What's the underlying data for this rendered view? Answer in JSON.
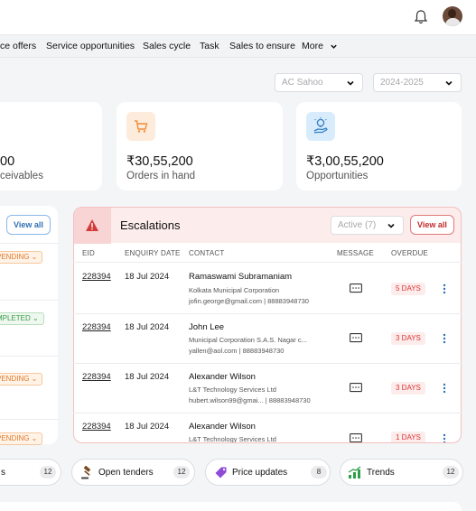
{
  "nav": {
    "items": [
      "ce offers",
      "Service opportunities",
      "Sales cycle",
      "Task",
      "Sales to ensure",
      "More"
    ]
  },
  "filters": {
    "owner": "AC Sahoo",
    "year": "2024-2025"
  },
  "kpis": [
    {
      "value": "00",
      "label": "ceivables"
    },
    {
      "value": "₹30,55,200",
      "label": "Orders in hand"
    },
    {
      "value": "₹3,00,55,200",
      "label": "Opportunities"
    }
  ],
  "left_panel": {
    "view_all": "View all",
    "statuses": [
      "PENDING",
      "MPLETED",
      "PENDING",
      "PENDING"
    ]
  },
  "escalations": {
    "title": "Escalations",
    "filter": "Active (7)",
    "view_all": "View all",
    "columns": [
      "EID",
      "ENQUIRY DATE",
      "CONTACT",
      "MESSAGE",
      "OVERDUE"
    ],
    "rows": [
      {
        "eid": "228394",
        "date": "18 Jul 2024",
        "name": "Ramaswami Subramaniam",
        "org": "Kolkata Municipal Corporation",
        "contact": "jofin.george@gmail.com | 88883948730",
        "overdue": "5 DAYS"
      },
      {
        "eid": "228394",
        "date": "18 Jul 2024",
        "name": "John Lee",
        "org": "Municipal Corporation S.A.S. Nagar c...",
        "contact": "yallen@aol.com | 88883948730",
        "overdue": "3 DAYS"
      },
      {
        "eid": "228394",
        "date": "18 Jul 2024",
        "name": "Alexander Wilson",
        "org": "L&T Technology Services  Ltd",
        "contact": "hubert.wilson99@gmai... | 88883948730",
        "overdue": "3 DAYS"
      },
      {
        "eid": "228394",
        "date": "18 Jul 2024",
        "name": "Alexander Wilson",
        "org": "L&T Technology Services  Ltd",
        "contact": "",
        "overdue": "1 DAYS"
      }
    ]
  },
  "quick_links": [
    {
      "label": "s",
      "count": "12"
    },
    {
      "label": "Open tenders",
      "count": "12"
    },
    {
      "label": "Price updates",
      "count": "8"
    },
    {
      "label": "Trends",
      "count": "12"
    }
  ],
  "colors": {
    "accent_red": "#d33b3b",
    "orange": "#f28c38",
    "blue_icon_bg": "#d9ecfb",
    "orange_icon_bg": "#fdebdc"
  }
}
